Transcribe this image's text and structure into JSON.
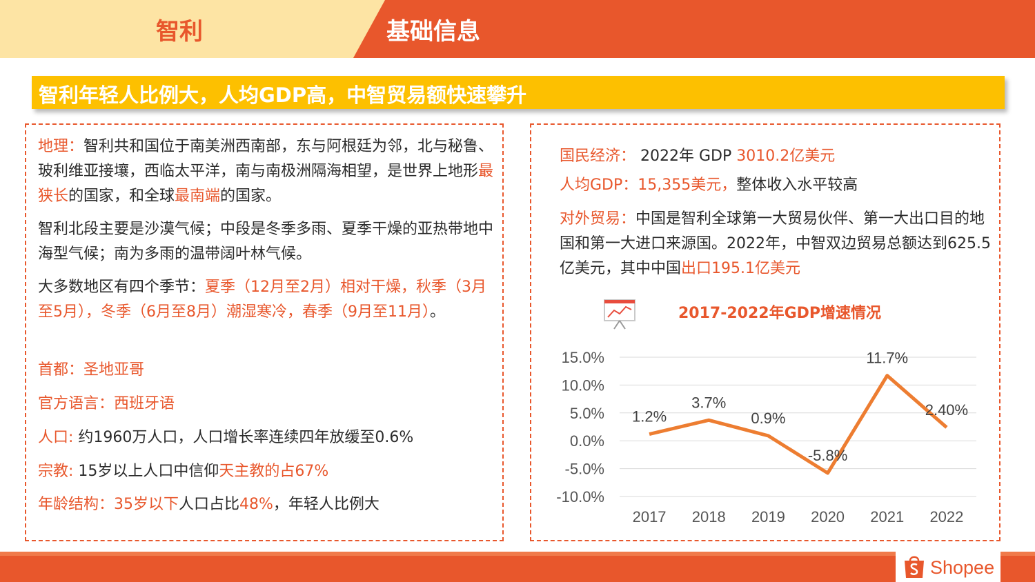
{
  "header": {
    "country": "智利",
    "title": "基础信息"
  },
  "banner": {
    "text": "智利年轻人比例大，人均GDP高，中智贸易额快速攀升"
  },
  "left": {
    "geo_label": "地理：",
    "geo_text1": "智利共和国位于南美洲西南部，东与阿根廷为邻，北与秘鲁、玻利维亚接壤，西临太平洋，南与南极洲隔海相望，是世界上地形",
    "geo_hl1": "最狭长",
    "geo_text2": "的国家，和全球",
    "geo_hl2": "最南端",
    "geo_text3": "的国家。",
    "climate": "智利北段主要是沙漠气候；中段是冬季多雨、夏季干燥的亚热带地中海型气候；南为多雨的温带阔叶林气候。",
    "seasons_text": "大多数地区有四个季节：",
    "seasons_hl": "夏季（12月至2月）相对干燥，秋季（3月至5月），冬季（6月至8月）潮湿寒冷，春季（9月至11月）",
    "seasons_end": "。",
    "capital": "首都：圣地亚哥",
    "language": "官方语言：西班牙语",
    "pop_label": "人口: ",
    "pop_text": "约1960万人口，人口增长率连续四年放缓至0.6%",
    "rel_label": "宗教: ",
    "rel_text": "15岁以上人口中信仰",
    "rel_hl": "天主教的占67%",
    "age_hl1": "年龄结构：35岁以下",
    "age_text1": "人口占比",
    "age_hl2": "48%",
    "age_text2": "，年轻人比例大"
  },
  "right": {
    "econ_label": "国民经济：",
    "econ_text": " 2022年 GDP ",
    "econ_hl": "3010.2亿美元",
    "pc_hl": "人均GDP：15,355美元，",
    "pc_text": "整体收入水平较高",
    "trade_label": "对外贸易：",
    "trade_text": "中国是智利全球第一大贸易伙伴、第一大出口目的地国和第一大进口来源国。2022年，中智双边贸易总额达到625.5亿美元，其中中国",
    "trade_hl": "出口195.1亿美元"
  },
  "chart_data": {
    "type": "line",
    "title": "2017-2022年GDP增速情况",
    "categories": [
      "2017",
      "2018",
      "2019",
      "2020",
      "2021",
      "2022"
    ],
    "values": [
      1.2,
      3.7,
      0.9,
      -5.8,
      11.7,
      2.4
    ],
    "data_labels": [
      "1.2%",
      "3.7%",
      "0.9%",
      "-5.8%",
      "11.7%",
      "2.40%"
    ],
    "ylim": [
      -10,
      15
    ],
    "yticks": [
      "15.0%",
      "10.0%",
      "5.0%",
      "0.0%",
      "-5.0%",
      "-10.0%"
    ],
    "ytick_values": [
      15,
      10,
      5,
      0,
      -5,
      -10
    ],
    "line_color": "#ed7d31",
    "grid": true
  },
  "footer": {
    "brand": "Shopee",
    "icon": "shopee-bag-icon"
  },
  "colors": {
    "accent": "#e8572c",
    "banner": "#fdc000",
    "header_left": "#fde4a4"
  }
}
